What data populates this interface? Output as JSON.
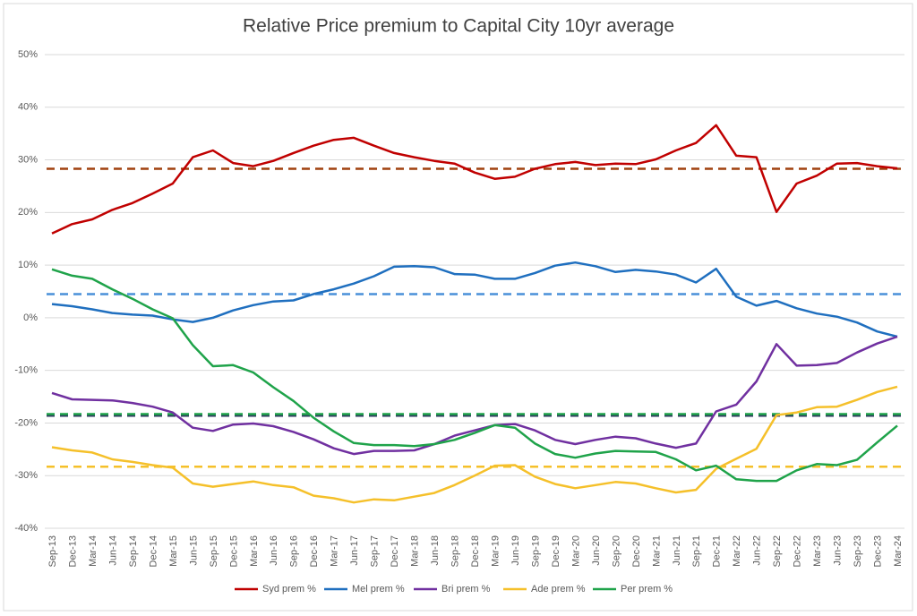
{
  "chart_data": {
    "type": "line",
    "title": "Relative Price premium to Capital City 10yr average",
    "categories": [
      "Sep-13",
      "Dec-13",
      "Mar-14",
      "Jun-14",
      "Sep-14",
      "Dec-14",
      "Mar-15",
      "Jun-15",
      "Sep-15",
      "Dec-15",
      "Mar-16",
      "Jun-16",
      "Sep-16",
      "Dec-16",
      "Mar-17",
      "Jun-17",
      "Sep-17",
      "Dec-17",
      "Mar-18",
      "Jun-18",
      "Sep-18",
      "Dec-18",
      "Mar-19",
      "Jun-19",
      "Sep-19",
      "Dec-19",
      "Mar-20",
      "Jun-20",
      "Sep-20",
      "Dec-20",
      "Mar-21",
      "Jun-21",
      "Sep-21",
      "Dec-21",
      "Mar-22",
      "Jun-22",
      "Sep-22",
      "Dec-22",
      "Mar-23",
      "Jun-23",
      "Sep-23",
      "Dec-23",
      "Mar-24"
    ],
    "series": [
      {
        "name": "Syd prem %",
        "color": "#c00000",
        "average": 28.3,
        "average_color": "#a0400f",
        "values": [
          16,
          17.8,
          18.7,
          20.5,
          21.8,
          23.6,
          25.5,
          30.5,
          31.8,
          29.4,
          28.8,
          29.8,
          31.3,
          32.7,
          33.8,
          34.2,
          32.7,
          31.3,
          30.5,
          29.8,
          29.3,
          27.6,
          26.4,
          26.8,
          28.3,
          29.2,
          29.6,
          29.0,
          29.3,
          29.2,
          30.1,
          31.8,
          33.2,
          36.6,
          30.8,
          30.5,
          20.1,
          25.5,
          27.0,
          29.3,
          29.4,
          28.8,
          28.4
        ]
      },
      {
        "name": "Mel prem %",
        "color": "#1f6fbf",
        "average": 4.5,
        "average_color": "#4a90d9",
        "values": [
          2.6,
          2.2,
          1.6,
          0.9,
          0.6,
          0.4,
          -0.3,
          -0.8,
          0.0,
          1.4,
          2.4,
          3.1,
          3.3,
          4.5,
          5.4,
          6.5,
          7.9,
          9.7,
          9.8,
          9.6,
          8.3,
          8.2,
          7.4,
          7.4,
          8.5,
          9.9,
          10.5,
          9.8,
          8.7,
          9.1,
          8.8,
          8.2,
          6.7,
          9.3,
          4.0,
          2.3,
          3.2,
          1.8,
          0.8,
          0.2,
          -0.9,
          -2.6,
          -3.6
        ]
      },
      {
        "name": "Bri prem %",
        "color": "#7030a0",
        "average": -18.6,
        "average_color": "#2f3a5f",
        "values": [
          -14.3,
          -15.5,
          -15.6,
          -15.7,
          -16.2,
          -16.9,
          -18.0,
          -20.9,
          -21.5,
          -20.3,
          -20.1,
          -20.6,
          -21.7,
          -23.1,
          -24.8,
          -25.9,
          -25.3,
          -25.3,
          -25.2,
          -24.0,
          -22.4,
          -21.4,
          -20.4,
          -20.2,
          -21.4,
          -23.2,
          -24.0,
          -23.2,
          -22.6,
          -22.9,
          -23.9,
          -24.7,
          -23.9,
          -17.8,
          -16.5,
          -12.1,
          -5.0,
          -9.1,
          -9.0,
          -8.6,
          -6.6,
          -4.9,
          -3.6
        ]
      },
      {
        "name": "Ade prem %",
        "color": "#f5c02a",
        "average": -28.3,
        "average_color": "#f5c02a",
        "values": [
          -24.6,
          -25.2,
          -25.6,
          -26.9,
          -27.4,
          -28.0,
          -28.5,
          -31.5,
          -32.1,
          -31.6,
          -31.1,
          -31.8,
          -32.2,
          -33.8,
          -34.3,
          -35.1,
          -34.5,
          -34.7,
          -34.0,
          -33.3,
          -31.8,
          -30.0,
          -28.1,
          -28.0,
          -30.2,
          -31.6,
          -32.4,
          -31.8,
          -31.2,
          -31.5,
          -32.4,
          -33.2,
          -32.7,
          -28.7,
          -26.8,
          -24.9,
          -18.5,
          -18.0,
          -17.0,
          -16.9,
          -15.6,
          -14.1,
          -13.1
        ]
      },
      {
        "name": "Per prem %",
        "color": "#1fa34a",
        "average": -18.3,
        "average_color": "#1fa34a",
        "values": [
          9.2,
          8.0,
          7.4,
          5.4,
          3.6,
          1.6,
          -0.1,
          -5.2,
          -9.2,
          -9.0,
          -10.4,
          -13.2,
          -15.8,
          -19.0,
          -21.6,
          -23.8,
          -24.2,
          -24.2,
          -24.4,
          -24.0,
          -23.2,
          -21.9,
          -20.4,
          -20.9,
          -23.9,
          -25.9,
          -26.6,
          -25.8,
          -25.3,
          -25.4,
          -25.5,
          -26.9,
          -29.0,
          -28.1,
          -30.7,
          -31.0,
          -31.0,
          -29.0,
          -27.8,
          -28.0,
          -27.0,
          -23.7,
          -20.5
        ]
      }
    ],
    "ylim": [
      -40,
      50
    ],
    "yticks": [
      {
        "value": -40,
        "label": "-40%"
      },
      {
        "value": -30,
        "label": "-30%"
      },
      {
        "value": -20,
        "label": "-20%"
      },
      {
        "value": -10,
        "label": "-10%"
      },
      {
        "value": 0,
        "label": "0%"
      },
      {
        "value": 10,
        "label": "10%"
      },
      {
        "value": 20,
        "label": "20%"
      },
      {
        "value": 30,
        "label": "30%"
      },
      {
        "value": 40,
        "label": "40%"
      },
      {
        "value": 50,
        "label": "50%"
      }
    ],
    "grid": true,
    "legend": "bottom"
  }
}
